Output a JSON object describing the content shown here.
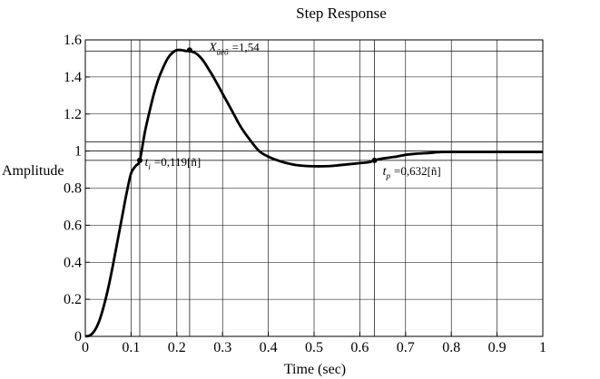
{
  "chart_data": {
    "type": "line",
    "title": "Step Response",
    "xlabel": "Time (sec)",
    "ylabel": "Amplitude",
    "xlim": [
      0,
      1
    ],
    "ylim": [
      0,
      1.6
    ],
    "xticks": [
      0,
      0.1,
      0.2,
      0.3,
      0.4,
      0.5,
      0.6,
      0.7,
      0.8,
      0.9,
      1
    ],
    "xtick_labels": [
      "0",
      "0.1",
      "0.2",
      "0.3",
      "0.4",
      "0.5",
      "0.6",
      "0.7",
      "0.8",
      "0.9",
      "1"
    ],
    "yticks": [
      0,
      0.2,
      0.4,
      0.6,
      0.8,
      1,
      1.2,
      1.4,
      1.6
    ],
    "ytick_labels": [
      "0",
      "0.2",
      "0.4",
      "0.6",
      "0.8",
      "1",
      "1.2",
      "1.4",
      "1.6"
    ],
    "grid": true,
    "series": [
      {
        "name": "",
        "x": [
          0,
          0.01,
          0.02,
          0.03,
          0.04,
          0.05,
          0.06,
          0.07,
          0.08,
          0.09,
          0.1,
          0.11,
          0.119,
          0.13,
          0.14,
          0.15,
          0.16,
          0.17,
          0.18,
          0.19,
          0.2,
          0.21,
          0.22,
          0.228,
          0.24,
          0.25,
          0.26,
          0.27,
          0.28,
          0.3,
          0.32,
          0.34,
          0.36,
          0.38,
          0.4,
          0.42,
          0.44,
          0.46,
          0.48,
          0.5,
          0.52,
          0.54,
          0.56,
          0.58,
          0.6,
          0.62,
          0.632,
          0.65,
          0.68,
          0.7,
          0.72,
          0.75,
          0.78,
          0.8,
          0.85,
          0.9,
          0.95,
          1.0
        ],
        "values": [
          0,
          0.005,
          0.03,
          0.08,
          0.16,
          0.26,
          0.38,
          0.51,
          0.64,
          0.77,
          0.88,
          0.92,
          0.95,
          1.1,
          1.21,
          1.31,
          1.39,
          1.45,
          1.5,
          1.53,
          1.545,
          1.545,
          1.54,
          1.54,
          1.53,
          1.51,
          1.48,
          1.44,
          1.4,
          1.31,
          1.22,
          1.13,
          1.06,
          1.0,
          0.97,
          0.95,
          0.935,
          0.925,
          0.92,
          0.918,
          0.918,
          0.92,
          0.925,
          0.93,
          0.935,
          0.94,
          0.95,
          0.96,
          0.97,
          0.98,
          0.985,
          0.99,
          0.995,
          0.995,
          0.995,
          0.995,
          0.995,
          0.995
        ],
        "color": "#000000"
      }
    ],
    "reference_lines": {
      "horizontal": [
        1.54,
        1.05,
        1,
        0.95
      ],
      "vertical": [
        0.119,
        0.228,
        0.632
      ]
    },
    "markers": [
      {
        "x": 0.119,
        "y": 0.95
      },
      {
        "x": 0.228,
        "y": 1.545
      },
      {
        "x": 0.632,
        "y": 0.95
      }
    ],
    "annotations": [
      {
        "symbol": "X",
        "subscript": "ûèõ",
        "value": "=1,54",
        "x": 0.27,
        "y": 1.54
      },
      {
        "symbol": "t",
        "subscript": "i",
        "value": "=0,119[ñ]",
        "x": 0.13,
        "y": 0.92
      },
      {
        "symbol": "t",
        "subscript": "p",
        "value": "=0,632[ñ]",
        "x": 0.65,
        "y": 0.87
      }
    ]
  }
}
